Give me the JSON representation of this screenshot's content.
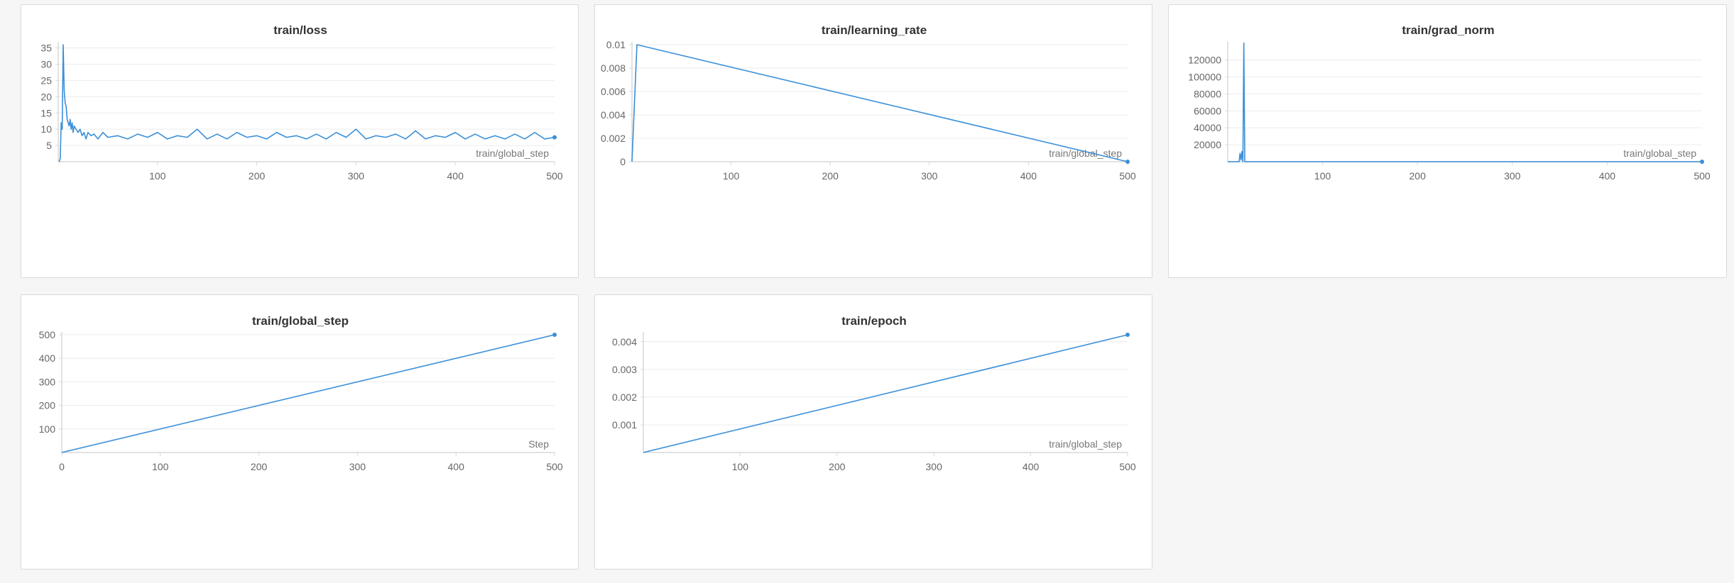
{
  "colors": {
    "series": "#3b8fd8",
    "background": "#f6f6f6",
    "panel": "#ffffff"
  },
  "chart_data": [
    {
      "type": "line",
      "title": "train/loss",
      "xlabel": "train/global_step",
      "ylabel": "",
      "xlim": [
        0,
        500
      ],
      "ylim": [
        0,
        36
      ],
      "x_ticks": [
        100,
        200,
        300,
        400,
        500
      ],
      "y_ticks": [
        5,
        10,
        15,
        20,
        25,
        30,
        35
      ],
      "series": [
        {
          "x": [
            1,
            2,
            3,
            4,
            5,
            6,
            7,
            8,
            9,
            10,
            11,
            12,
            13,
            14,
            15,
            16,
            18,
            20,
            22,
            24,
            26,
            28,
            30,
            33,
            36,
            40,
            45,
            50,
            60,
            70,
            80,
            90,
            100,
            110,
            120,
            130,
            140,
            150,
            160,
            170,
            180,
            190,
            200,
            210,
            220,
            230,
            240,
            250,
            260,
            270,
            280,
            290,
            300,
            310,
            320,
            330,
            340,
            350,
            360,
            370,
            380,
            390,
            400,
            410,
            420,
            430,
            440,
            450,
            460,
            470,
            480,
            490,
            500
          ],
          "y": [
            0,
            1,
            12,
            10,
            36,
            22,
            18,
            17,
            13,
            12,
            11,
            13,
            10,
            12,
            9,
            11,
            10,
            9,
            10,
            8,
            9,
            7,
            9,
            8,
            8.5,
            7,
            9,
            7.5,
            8,
            7,
            8.5,
            7.5,
            9,
            7,
            8,
            7.5,
            10,
            7,
            8.5,
            7,
            9,
            7.5,
            8,
            7,
            9,
            7.5,
            8,
            7,
            8.5,
            7,
            9,
            7.5,
            10,
            7,
            8,
            7.5,
            8.5,
            7,
            9.5,
            7,
            8,
            7.5,
            9,
            7,
            8.5,
            7,
            8,
            7,
            8.5,
            7,
            9,
            7,
            7.5
          ]
        }
      ]
    },
    {
      "type": "line",
      "title": "train/learning_rate",
      "xlabel": "train/global_step",
      "ylabel": "",
      "xlim": [
        0,
        500
      ],
      "ylim": [
        0,
        0.01
      ],
      "x_ticks": [
        100,
        200,
        300,
        400,
        500
      ],
      "y_ticks": [
        0,
        0.002,
        0.004,
        0.006,
        0.008,
        0.01
      ],
      "series": [
        {
          "x": [
            0,
            5,
            500
          ],
          "y": [
            0,
            0.01,
            0
          ]
        }
      ]
    },
    {
      "type": "line",
      "title": "train/grad_norm",
      "xlabel": "train/global_step",
      "ylabel": "",
      "xlim": [
        0,
        500
      ],
      "ylim": [
        0,
        138000
      ],
      "x_ticks": [
        100,
        200,
        300,
        400,
        500
      ],
      "y_ticks": [
        20000,
        40000,
        60000,
        80000,
        100000,
        120000
      ],
      "series": [
        {
          "x": [
            0,
            12,
            13,
            14,
            15,
            16,
            17,
            18,
            500
          ],
          "y": [
            0,
            0,
            10000,
            2000,
            12000,
            0,
            140000,
            0,
            0
          ]
        }
      ]
    },
    {
      "type": "line",
      "title": "train/global_step",
      "xlabel": "Step",
      "ylabel": "",
      "xlim": [
        0,
        500
      ],
      "ylim": [
        0,
        500
      ],
      "x_ticks": [
        0,
        100,
        200,
        300,
        400,
        500
      ],
      "y_ticks": [
        100,
        200,
        300,
        400,
        500
      ],
      "series": [
        {
          "x": [
            0,
            500
          ],
          "y": [
            0,
            500
          ]
        }
      ]
    },
    {
      "type": "line",
      "title": "train/epoch",
      "xlabel": "train/global_step",
      "ylabel": "",
      "xlim": [
        0,
        500
      ],
      "ylim": [
        0,
        0.00425
      ],
      "x_ticks": [
        100,
        200,
        300,
        400,
        500
      ],
      "y_ticks": [
        0.001,
        0.002,
        0.003,
        0.004
      ],
      "series": [
        {
          "x": [
            0,
            500
          ],
          "y": [
            0,
            0.00425
          ]
        }
      ]
    }
  ]
}
